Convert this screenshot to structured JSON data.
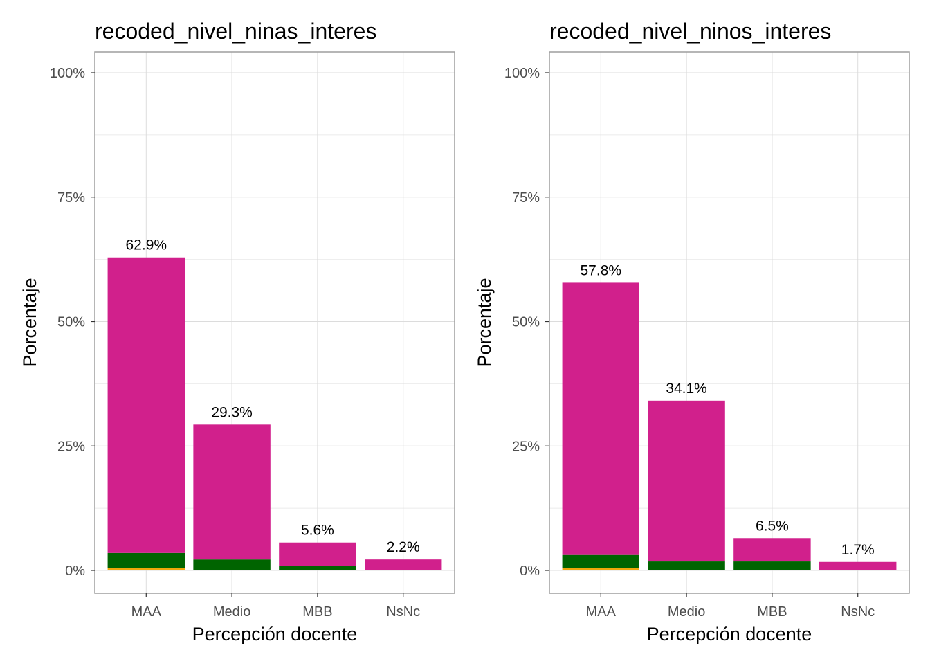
{
  "colors": {
    "primary": "#d1208c",
    "secondary": "#006400",
    "tertiary": "#f0a80a",
    "grid": "#dcdcdc",
    "panel_border": "#9e9e9e",
    "tick_text": "#4d4d4d"
  },
  "chart_data": [
    {
      "type": "bar",
      "stacked": true,
      "title": "recoded_nivel_ninas_interes",
      "xlabel": "Percepción docente",
      "ylabel": "Porcentaje",
      "categories": [
        "MAA",
        "Medio",
        "MBB",
        "NsNc"
      ],
      "ylim": [
        0,
        100
      ],
      "yticks": [
        "0%",
        "25%",
        "50%",
        "75%",
        "100%"
      ],
      "grid": true,
      "totals": [
        62.9,
        29.3,
        5.6,
        2.2
      ],
      "data_labels": [
        "62.9%",
        "29.3%",
        "5.6%",
        "2.2%"
      ],
      "series": [
        {
          "values": [
            0.5,
            0,
            0,
            0
          ],
          "color": "#f0a80a"
        },
        {
          "values": [
            3.0,
            2.2,
            0.9,
            0
          ],
          "color": "#006400"
        },
        {
          "values": [
            59.4,
            27.1,
            4.7,
            2.2
          ],
          "color": "#d1208c"
        }
      ]
    },
    {
      "type": "bar",
      "stacked": true,
      "title": "recoded_nivel_ninos_interes",
      "xlabel": "Percepción docente",
      "ylabel": "Porcentaje",
      "categories": [
        "MAA",
        "Medio",
        "MBB",
        "NsNc"
      ],
      "ylim": [
        0,
        100
      ],
      "yticks": [
        "0%",
        "25%",
        "50%",
        "75%",
        "100%"
      ],
      "grid": true,
      "totals": [
        57.8,
        34.1,
        6.5,
        1.7
      ],
      "data_labels": [
        "57.8%",
        "34.1%",
        "6.5%",
        "1.7%"
      ],
      "series": [
        {
          "values": [
            0.5,
            0,
            0,
            0
          ],
          "color": "#f0a80a"
        },
        {
          "values": [
            2.6,
            1.8,
            1.8,
            0
          ],
          "color": "#006400"
        },
        {
          "values": [
            54.7,
            32.3,
            4.7,
            1.7
          ],
          "color": "#d1208c"
        }
      ]
    }
  ]
}
